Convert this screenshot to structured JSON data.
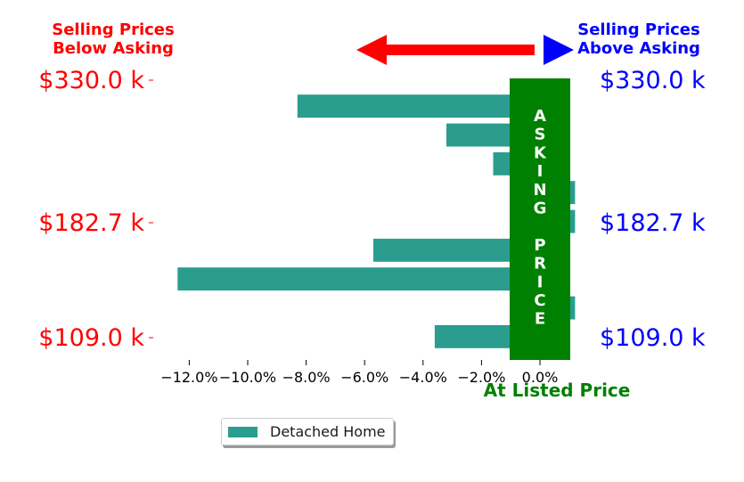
{
  "chart_data": {
    "type": "bar",
    "orientation": "horizontal",
    "title_left": [
      "Selling Prices",
      "Below Asking"
    ],
    "title_right": [
      "Selling Prices",
      "Above Asking"
    ],
    "xlabel": "At Listed Price",
    "ylabel": "",
    "xlim": [
      -13.5,
      1.5
    ],
    "x_ticks": [
      -12,
      -10,
      -8,
      -6,
      -4,
      -2,
      0
    ],
    "x_tick_labels": [
      "−12.0%",
      "−10.0%",
      "−8.0%",
      "−6.0%",
      "−4.0%",
      "−2.0%",
      "0.0%"
    ],
    "y_tick_labels": [
      "$330.0 k",
      "$182.7 k",
      "$109.0 k"
    ],
    "series": [
      {
        "name": "Detached Home",
        "values": [
          -8.3,
          -3.2,
          -1.6,
          1.2,
          1.2,
          -5.7,
          -12.4,
          1.2,
          -3.6
        ]
      }
    ],
    "asking_price_band": {
      "text": [
        "A",
        "S",
        "K",
        "I",
        "N",
        "G",
        "",
        "P",
        "R",
        "I",
        "C",
        "E"
      ],
      "xrange": [
        -1.0,
        1.0
      ]
    },
    "grid": false,
    "legend_position": "below"
  },
  "colors": {
    "bar": "#2a9d8f",
    "below": "#ff0000",
    "above": "#0000ff",
    "asking": "#008000"
  }
}
